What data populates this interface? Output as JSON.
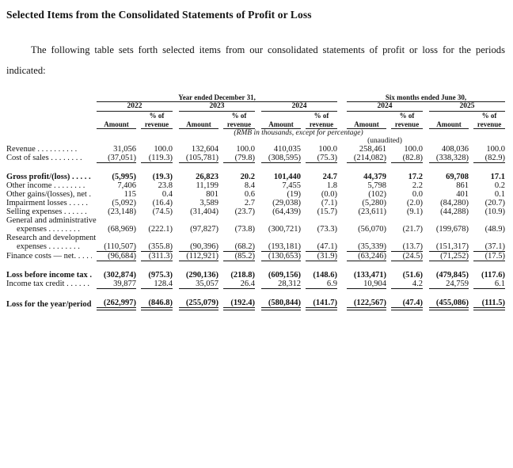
{
  "document": {
    "title": "Selected Items from the Consolidated Statements of Profit or Loss",
    "intro": "The following table sets forth selected items from our consolidated statements of profit or loss for the periods indicated:"
  },
  "table": {
    "group_headers": [
      "Year ended December 31,",
      "Six months ended June 30,"
    ],
    "years": [
      "2022",
      "2023",
      "2024",
      "2024",
      "2025"
    ],
    "amount_header": "Amount",
    "pct_header_line1": "% of",
    "pct_header_line2": "revenue",
    "units_note": "(RMB in thousands, except for percentage)",
    "unaudited_note": "(unaudited)",
    "rows": [
      {
        "label": "Revenue",
        "dots": ". . . . . . . . . .",
        "values": [
          "31,056",
          "100.0",
          "132,604",
          "100.0",
          "410,035",
          "100.0",
          "258,461",
          "100.0",
          "408,036",
          "100.0"
        ]
      },
      {
        "label": "Cost of sales",
        "dots": ". . . . . . . .",
        "underline": "single",
        "values": [
          "(37,051)",
          "(119.3)",
          "(105,781)",
          "(79.8)",
          "(308,595)",
          "(75.3)",
          "(214,082)",
          "(82.8)",
          "(338,328)",
          "(82.9)"
        ]
      },
      {
        "label": "Gross profit/(loss)",
        "dots": ". . . . .",
        "bold": true,
        "space_before": true,
        "values": [
          "(5,995)",
          "(19.3)",
          "26,823",
          "20.2",
          "101,440",
          "24.7",
          "44,379",
          "17.2",
          "69,708",
          "17.1"
        ]
      },
      {
        "label": "Other income",
        "dots": ". . . . . . . .",
        "values": [
          "7,406",
          "23.8",
          "11,199",
          "8.4",
          "7,455",
          "1.8",
          "5,798",
          "2.2",
          "861",
          "0.2"
        ]
      },
      {
        "label": "Other gains/(losses), net",
        "dots": ". . .",
        "values": [
          "115",
          "0.4",
          "801",
          "0.6",
          "(19)",
          "(0.0)",
          "(102)",
          "0.0",
          "401",
          "0.1"
        ]
      },
      {
        "label": "Impairment losses",
        "dots": ". . . . .",
        "values": [
          "(5,092)",
          "(16.4)",
          "3,589",
          "2.7",
          "(29,038)",
          "(7.1)",
          "(5,280)",
          "(2.0)",
          "(84,280)",
          "(20.7)"
        ]
      },
      {
        "label": "Selling expenses",
        "dots": ". . . . . .",
        "values": [
          "(23,148)",
          "(74.5)",
          "(31,404)",
          "(23.7)",
          "(64,439)",
          "(15.7)",
          "(23,611)",
          "(9.1)",
          "(44,288)",
          "(10.9)"
        ]
      },
      {
        "label_top": "General and administrative",
        "label": "expenses",
        "dots": ". . . . . . . .",
        "indent": true,
        "values": [
          "(68,969)",
          "(222.1)",
          "(97,827)",
          "(73.8)",
          "(300,721)",
          "(73.3)",
          "(56,070)",
          "(21.7)",
          "(199,678)",
          "(48.9)"
        ]
      },
      {
        "label_top": "Research and development",
        "label": "expenses",
        "dots": ". . . . . . . .",
        "indent": true,
        "underline": "single",
        "values": [
          "(110,507)",
          "(355.8)",
          "(90,396)",
          "(68.2)",
          "(193,181)",
          "(47.1)",
          "(35,339)",
          "(13.7)",
          "(151,317)",
          "(37.1)"
        ]
      },
      {
        "label": "Finance costs — net.",
        "dots": ". . . .",
        "underline": "single",
        "values": [
          "(96,684)",
          "(311.3)",
          "(112,921)",
          "(85.2)",
          "(130,653)",
          "(31.9)",
          "(63,246)",
          "(24.5)",
          "(71,252)",
          "(17.5)"
        ]
      },
      {
        "label": "Loss before income tax",
        "dots": ". .",
        "bold": true,
        "space_before": true,
        "values": [
          "(302,874)",
          "(975.3)",
          "(290,136)",
          "(218.8)",
          "(609,156)",
          "(148.6)",
          "(133,471)",
          "(51.6)",
          "(479,845)",
          "(117.6)"
        ]
      },
      {
        "label": "Income tax credit",
        "dots": ". . . . . .",
        "underline": "single",
        "values": [
          "39,877",
          "128.4",
          "35,057",
          "26.4",
          "28,312",
          "6.9",
          "10,904",
          "4.2",
          "24,759",
          "6.1"
        ]
      },
      {
        "label": "Loss for the year/period",
        "dots": ". .",
        "bold": true,
        "space_before": true,
        "underline": "double",
        "values": [
          "(262,997)",
          "(846.8)",
          "(255,079)",
          "(192.4)",
          "(580,844)",
          "(141.7)",
          "(122,567)",
          "(47.4)",
          "(455,086)",
          "(111.5)"
        ]
      }
    ]
  }
}
